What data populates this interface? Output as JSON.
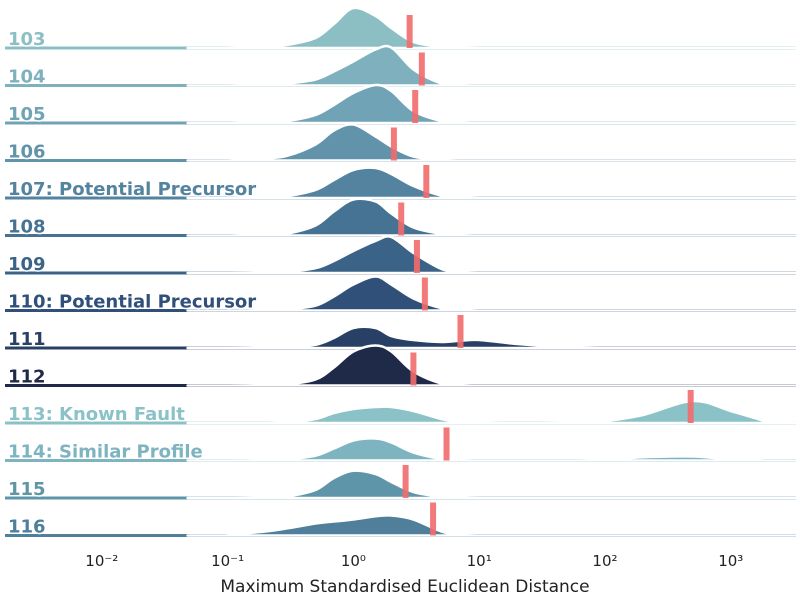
{
  "chart_data": {
    "type": "ridgeline",
    "xlabel": "Maximum Standardised Euclidean Distance",
    "log_x": true,
    "xlim": [
      0.0017,
      3300
    ],
    "xticks": [
      {
        "value": 0.01,
        "label": "10⁻²"
      },
      {
        "value": 0.1,
        "label": "10⁻¹"
      },
      {
        "value": 1,
        "label": "10⁰"
      },
      {
        "value": 10,
        "label": "10¹"
      },
      {
        "value": 100,
        "label": "10²"
      },
      {
        "value": 1000,
        "label": "10³"
      }
    ],
    "grid": false,
    "threshold_color": "#f26b6b",
    "x": [
      0.1,
      0.2,
      0.3,
      0.5,
      0.7,
      1,
      1.5,
      2,
      3,
      5,
      7,
      10,
      20,
      50,
      100,
      200,
      500,
      1000,
      2000
    ],
    "series": [
      {
        "name": "103",
        "color": "#8bbfc4",
        "threshold": 2.8,
        "values": [
          0,
          0.03,
          0.08,
          0.25,
          0.6,
          1.0,
          0.8,
          0.5,
          0.15,
          0.03,
          0.01,
          0,
          0,
          0,
          0,
          0,
          0,
          0,
          0
        ]
      },
      {
        "name": "104",
        "color": "#7eb1bd",
        "threshold": 3.5,
        "values": [
          0,
          0.02,
          0.05,
          0.15,
          0.35,
          0.6,
          0.9,
          0.95,
          0.4,
          0.05,
          0.01,
          0,
          0,
          0,
          0,
          0,
          0,
          0,
          0
        ]
      },
      {
        "name": "105",
        "color": "#6fa3b5",
        "threshold": 3.1,
        "values": [
          0,
          0.02,
          0.05,
          0.2,
          0.45,
          0.75,
          0.95,
          0.8,
          0.3,
          0.05,
          0.01,
          0,
          0,
          0,
          0,
          0,
          0,
          0,
          0
        ]
      },
      {
        "name": "106",
        "color": "#6193aa",
        "threshold": 2.1,
        "values": [
          0,
          0.05,
          0.12,
          0.4,
          0.75,
          0.9,
          0.6,
          0.35,
          0.1,
          0.02,
          0,
          0,
          0,
          0,
          0,
          0,
          0,
          0,
          0
        ]
      },
      {
        "name": "107: Potential Precursor",
        "color": "#53839f",
        "threshold": 3.8,
        "values": [
          0,
          0.02,
          0.05,
          0.2,
          0.45,
          0.7,
          0.75,
          0.6,
          0.3,
          0.06,
          0.02,
          0,
          0,
          0,
          0,
          0,
          0,
          0,
          0
        ]
      },
      {
        "name": "108",
        "color": "#467393",
        "threshold": 2.4,
        "values": [
          0,
          0.02,
          0.05,
          0.25,
          0.6,
          0.9,
          0.85,
          0.55,
          0.2,
          0.04,
          0.01,
          0,
          0,
          0,
          0,
          0,
          0,
          0,
          0
        ]
      },
      {
        "name": "109",
        "color": "#3b6387",
        "threshold": 3.2,
        "values": [
          0,
          0.01,
          0.03,
          0.12,
          0.3,
          0.55,
          0.8,
          0.9,
          0.5,
          0.1,
          0.02,
          0,
          0,
          0,
          0,
          0,
          0,
          0,
          0
        ]
      },
      {
        "name": "110: Potential Precursor",
        "color": "#30507a",
        "threshold": 3.7,
        "values": [
          0,
          0.01,
          0.03,
          0.12,
          0.35,
          0.65,
          0.85,
          0.65,
          0.3,
          0.06,
          0.02,
          0,
          0,
          0,
          0,
          0,
          0,
          0,
          0
        ]
      },
      {
        "name": "111",
        "color": "#283f66",
        "threshold": 7.1,
        "values": [
          0,
          0.01,
          0.03,
          0.08,
          0.25,
          0.5,
          0.5,
          0.3,
          0.2,
          0.15,
          0.18,
          0.2,
          0.1,
          0.02,
          0,
          0,
          0,
          0,
          0
        ]
      },
      {
        "name": "112",
        "color": "#1f2a48",
        "threshold": 3.0,
        "values": [
          0,
          0.01,
          0.03,
          0.15,
          0.45,
          0.85,
          1.0,
          0.85,
          0.35,
          0.05,
          0.01,
          0,
          0,
          0,
          0,
          0,
          0,
          0,
          0
        ]
      },
      {
        "name": "113: Known Fault",
        "color": "#8bc2c7",
        "threshold": 480,
        "values": [
          0,
          0,
          0.02,
          0.1,
          0.25,
          0.35,
          0.4,
          0.4,
          0.3,
          0.1,
          0.03,
          0.01,
          0,
          0.01,
          0.05,
          0.2,
          0.55,
          0.3,
          0.02
        ]
      },
      {
        "name": "114: Similar Profile",
        "color": "#7db4c0",
        "threshold": 5.5,
        "values": [
          0,
          0.01,
          0.03,
          0.12,
          0.3,
          0.5,
          0.55,
          0.45,
          0.2,
          0.04,
          0.01,
          0,
          0,
          0,
          0.02,
          0.08,
          0.1,
          0.03,
          0
        ]
      },
      {
        "name": "115",
        "color": "#5e95a8",
        "threshold": 2.6,
        "values": [
          0,
          0.01,
          0.04,
          0.2,
          0.5,
          0.68,
          0.6,
          0.4,
          0.15,
          0.03,
          0.01,
          0,
          0,
          0,
          0,
          0,
          0,
          0,
          0
        ]
      },
      {
        "name": "116",
        "color": "#4f7f9a",
        "threshold": 4.3,
        "values": [
          0.02,
          0.1,
          0.18,
          0.3,
          0.35,
          0.4,
          0.48,
          0.5,
          0.4,
          0.1,
          0.02,
          0,
          0,
          0,
          0,
          0,
          0,
          0,
          0
        ]
      }
    ]
  }
}
